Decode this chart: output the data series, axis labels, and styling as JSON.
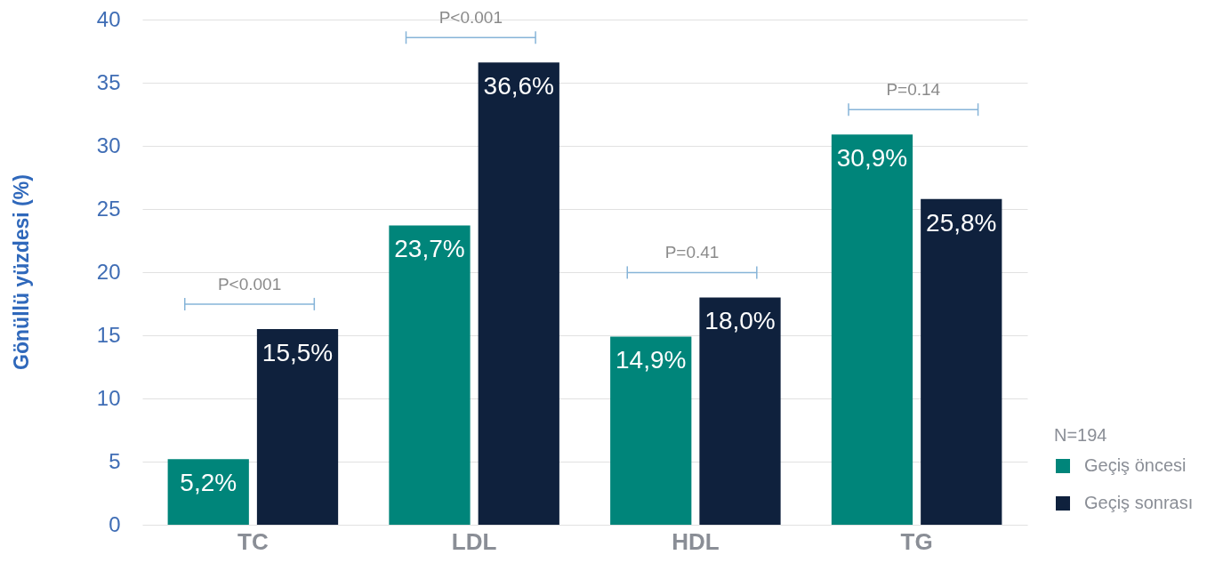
{
  "chart_data": {
    "type": "bar",
    "ylabel": "Gönüllü yüzdesi (%)",
    "legend_title": "N=194",
    "categories": [
      "TC",
      "LDL",
      "HDL",
      "TG"
    ],
    "series": [
      {
        "name": "Geçiş öncesi",
        "color": "#00857a",
        "values": [
          5.2,
          23.7,
          14.9,
          30.9
        ],
        "value_labels": [
          "5,2%",
          "23,7%",
          "14,9%",
          "30,9%"
        ]
      },
      {
        "name": "Geçiş sonrası",
        "color": "#0f213d",
        "values": [
          15.5,
          36.6,
          18.0,
          25.8
        ],
        "value_labels": [
          "15,5%",
          "36,6%",
          "18,0%",
          "25,8%"
        ]
      }
    ],
    "ylim": [
      0,
      40
    ],
    "yticks": [
      0,
      5,
      10,
      15,
      20,
      25,
      30,
      35,
      40
    ],
    "grid": "y",
    "legend": "bottom right",
    "annotations": [
      "P<0.001",
      "P<0.001",
      "P=0.41",
      "P=0.14"
    ]
  }
}
